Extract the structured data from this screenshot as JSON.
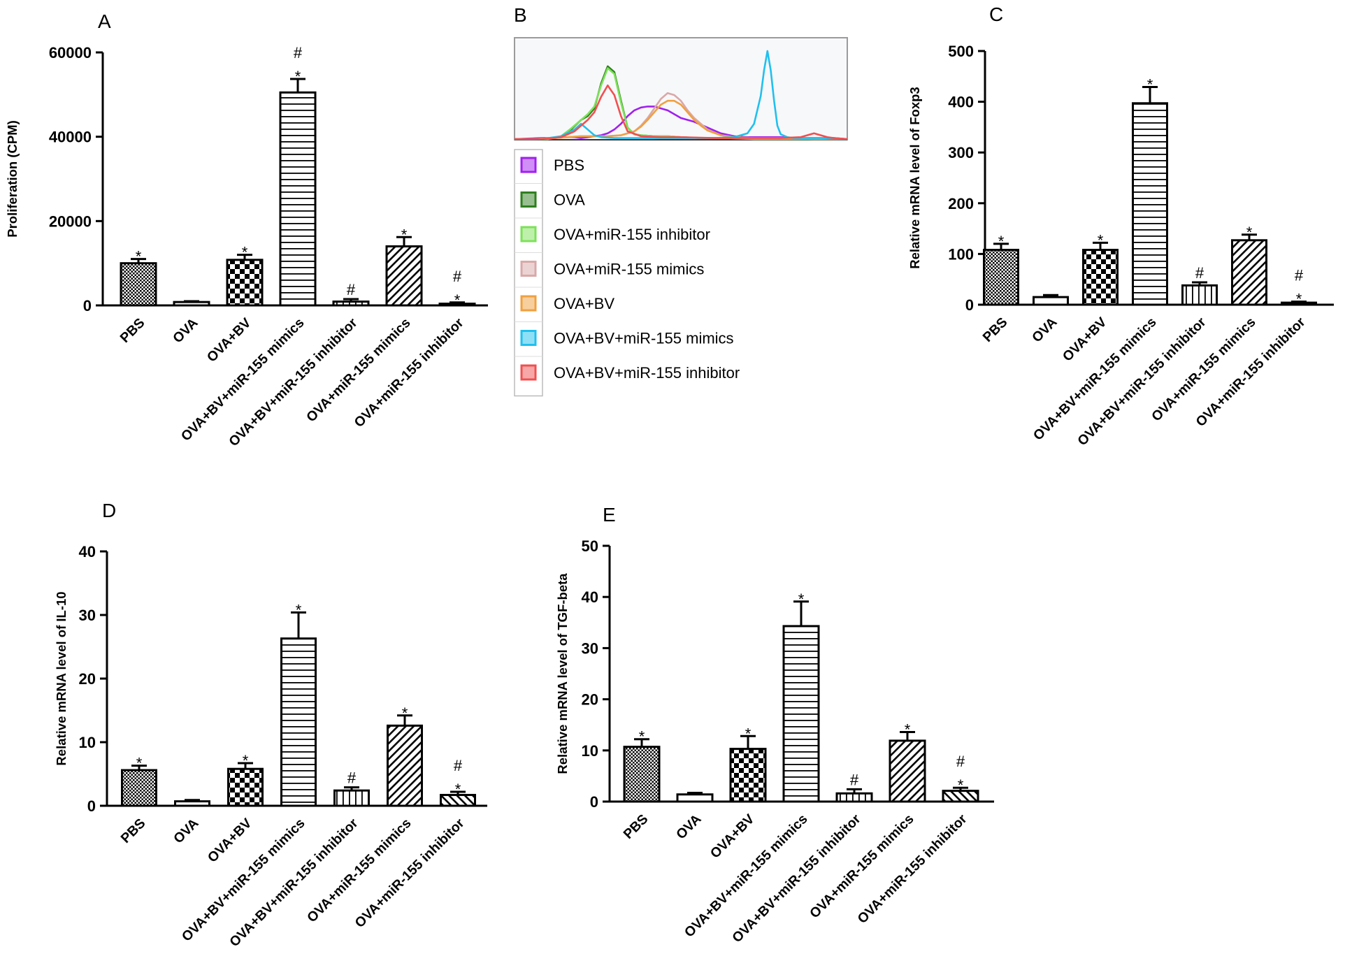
{
  "colors": {
    "ink": "#000000",
    "flow_bg": "#f7f8fa",
    "flow_border": "#9b9b9b",
    "PBS": "#a020f0",
    "OVA": "#2f7f1f",
    "OVA_inhibitor": "#7ee15a",
    "OVA_mimics": "#d9a8a8",
    "OVA_BV": "#f0a040",
    "OVA_BV_mimics": "#20c0ee",
    "OVA_BV_inhibitor": "#f05050"
  },
  "chart_data": [
    {
      "panel": "A",
      "type": "bar",
      "ylabel": "Proliferation (CPM)",
      "ylim": [
        0,
        60000
      ],
      "yticks": [
        0,
        20000,
        40000,
        60000
      ],
      "categories": [
        "PBS",
        "OVA",
        "OVA+BV",
        "OVA+BV+miR-155 mimics",
        "OVA+BV+miR-155 inhibitor",
        "OVA+miR-155 mimics",
        "OVA+miR-155 inhibitor"
      ],
      "patterns": [
        "checkfine",
        "plain",
        "checkbig",
        "hlines",
        "vlines",
        "diag",
        "diag"
      ],
      "values": [
        10000,
        800,
        10800,
        50500,
        900,
        14000,
        400
      ],
      "errors": [
        1000,
        200,
        1200,
        3200,
        600,
        2200,
        300
      ],
      "annotations": [
        "*",
        "",
        "*",
        "#\n*",
        "#",
        "*",
        "#\n*"
      ]
    },
    {
      "panel": "C",
      "type": "bar",
      "ylabel": "Relative mRNA level of Foxp3",
      "ylim": [
        0,
        500
      ],
      "yticks": [
        0,
        100,
        200,
        300,
        400,
        500
      ],
      "categories": [
        "PBS",
        "OVA",
        "OVA+BV",
        "OVA+BV+miR-155 mimics",
        "OVA+BV+miR-155 inhibitor",
        "OVA+miR-155 mimics",
        "OVA+miR-155 inhibitor"
      ],
      "patterns": [
        "checkfine",
        "plain",
        "checkbig",
        "hlines",
        "vlines",
        "diag",
        "diag"
      ],
      "values": [
        108,
        15,
        108,
        397,
        38,
        127,
        4
      ],
      "errors": [
        12,
        4,
        14,
        32,
        6,
        11,
        2
      ],
      "annotations": [
        "*",
        "",
        "*",
        "*",
        "#",
        "*",
        "#\n*"
      ]
    },
    {
      "panel": "D",
      "type": "bar",
      "ylabel": "Relative mRNA level of IL-10",
      "ylim": [
        0,
        40
      ],
      "yticks": [
        0,
        10,
        20,
        30,
        40
      ],
      "categories": [
        "PBS",
        "OVA",
        "OVA+BV",
        "OVA+BV+miR-155 mimics",
        "OVA+BV+miR-155 inhibitor",
        "OVA+miR-155 mimics",
        "OVA+miR-155 inhibitor"
      ],
      "patterns": [
        "checkfine",
        "plain",
        "checkbig",
        "hlines",
        "vlines",
        "diag",
        "diagback"
      ],
      "values": [
        5.6,
        0.7,
        5.8,
        26.3,
        2.4,
        12.6,
        1.7
      ],
      "errors": [
        0.7,
        0.2,
        0.9,
        4.1,
        0.5,
        1.6,
        0.5
      ],
      "annotations": [
        "*",
        "",
        "*",
        "*",
        "#",
        "*",
        "#\n*"
      ]
    },
    {
      "panel": "E",
      "type": "bar",
      "ylabel": "Relative mRNA level of TGF-beta",
      "ylim": [
        0,
        50
      ],
      "yticks": [
        0,
        10,
        20,
        30,
        40,
        50
      ],
      "categories": [
        "PBS",
        "OVA",
        "OVA+BV",
        "OVA+BV+miR-155 mimics",
        "OVA+BV+miR-155 inhibitor",
        "OVA+miR-155 mimics",
        "OVA+miR-155 inhibitor"
      ],
      "patterns": [
        "checkfine",
        "plain",
        "checkbig",
        "hlines",
        "vlines",
        "diag",
        "diagback"
      ],
      "values": [
        10.7,
        1.4,
        10.3,
        34.3,
        1.6,
        11.9,
        2.1
      ],
      "errors": [
        1.5,
        0.3,
        2.5,
        4.8,
        0.8,
        1.7,
        0.6
      ],
      "annotations": [
        "*",
        "",
        "*",
        "*",
        "#",
        "*",
        "#\n*"
      ]
    },
    {
      "panel": "B",
      "type": "line",
      "title": "",
      "legend": [
        {
          "label": "PBS",
          "color_key": "PBS"
        },
        {
          "label": "OVA",
          "color_key": "OVA"
        },
        {
          "label": "OVA+miR-155 inhibitor",
          "color_key": "OVA_inhibitor"
        },
        {
          "label": "OVA+miR-155 mimics",
          "color_key": "OVA_mimics"
        },
        {
          "label": "OVA+BV",
          "color_key": "OVA_BV"
        },
        {
          "label": "OVA+BV+miR-155 mimics",
          "color_key": "OVA_BV_mimics"
        },
        {
          "label": "OVA+BV+miR-155 inhibitor",
          "color_key": "OVA_BV_inhibitor"
        }
      ],
      "series": [
        {
          "name": "PBS",
          "color_key": "PBS",
          "x": [
            0,
            4,
            8,
            12,
            14,
            16,
            18,
            20,
            22,
            24,
            26,
            28,
            30,
            32,
            34,
            36,
            38,
            40,
            42,
            46,
            50,
            54,
            58,
            62,
            66,
            70,
            74,
            80,
            86,
            92,
            96,
            100
          ],
          "y": [
            0,
            0.5,
            1,
            1,
            2,
            2,
            2,
            1,
            2,
            3,
            4,
            6,
            10,
            16,
            24,
            30,
            33,
            34,
            34,
            30,
            22,
            18,
            12,
            6,
            3,
            2,
            2,
            2,
            1,
            1,
            1,
            0
          ]
        },
        {
          "name": "OVA",
          "color_key": "OVA",
          "x": [
            0,
            6,
            10,
            14,
            17,
            20,
            22,
            24,
            26,
            28,
            30,
            32,
            34,
            36,
            38,
            42,
            46,
            50,
            56,
            64,
            72,
            80,
            90,
            100
          ],
          "y": [
            0,
            0,
            0,
            2,
            10,
            20,
            24,
            32,
            58,
            76,
            70,
            40,
            12,
            5,
            4,
            3,
            3,
            2,
            1,
            1,
            0,
            0,
            0,
            0
          ]
        },
        {
          "name": "OVA+miR-155 inhibitor",
          "color_key": "OVA_inhibitor",
          "x": [
            0,
            6,
            10,
            14,
            17,
            20,
            22,
            24,
            26,
            28,
            30,
            32,
            34,
            36,
            38,
            42,
            46,
            50,
            56,
            64,
            72,
            80,
            90,
            100
          ],
          "y": [
            0,
            0,
            0,
            3,
            11,
            20,
            26,
            34,
            56,
            74,
            68,
            38,
            12,
            5,
            4,
            3,
            3,
            2,
            1,
            1,
            0,
            0,
            0,
            0
          ]
        },
        {
          "name": "OVA+miR-155 mimics",
          "color_key": "OVA_mimics",
          "x": [
            0,
            6,
            12,
            16,
            20,
            24,
            28,
            32,
            36,
            38,
            40,
            42,
            44,
            46,
            48,
            50,
            52,
            54,
            56,
            58,
            62,
            66,
            72,
            80,
            90,
            100
          ],
          "y": [
            0,
            0,
            1,
            2,
            3,
            3,
            3,
            4,
            8,
            14,
            22,
            32,
            42,
            48,
            46,
            40,
            30,
            22,
            16,
            10,
            4,
            2,
            1,
            1,
            0,
            0
          ]
        },
        {
          "name": "OVA+BV",
          "color_key": "OVA_BV",
          "x": [
            0,
            6,
            12,
            16,
            20,
            24,
            28,
            32,
            36,
            38,
            40,
            42,
            44,
            46,
            48,
            50,
            52,
            54,
            56,
            58,
            62,
            66,
            72,
            80,
            90,
            100
          ],
          "y": [
            0,
            0,
            1,
            2,
            3,
            3,
            3,
            4,
            8,
            13,
            20,
            28,
            36,
            40,
            40,
            36,
            28,
            20,
            14,
            9,
            4,
            2,
            1,
            1,
            0,
            0
          ]
        },
        {
          "name": "OVA+BV+miR-155 mimics",
          "color_key": "OVA_BV_mimics",
          "x": [
            0,
            8,
            14,
            18,
            20,
            22,
            24,
            26,
            30,
            40,
            50,
            60,
            66,
            70,
            72,
            74,
            75,
            76,
            77,
            78,
            79,
            80,
            82,
            84,
            88,
            92,
            96,
            100
          ],
          "y": [
            0,
            0,
            3,
            10,
            16,
            10,
            4,
            2,
            1,
            1,
            1,
            1,
            2,
            6,
            16,
            45,
            72,
            92,
            72,
            40,
            14,
            5,
            2,
            1,
            1,
            1,
            0,
            0
          ]
        },
        {
          "name": "OVA+BV+miR-155 inhibitor",
          "color_key": "OVA_BV_inhibitor",
          "x": [
            0,
            8,
            14,
            18,
            20,
            22,
            24,
            26,
            28,
            30,
            32,
            34,
            38,
            44,
            50,
            60,
            70,
            80,
            86,
            88,
            90,
            92,
            94,
            96,
            100
          ],
          "y": [
            0,
            0,
            2,
            8,
            14,
            20,
            28,
            44,
            56,
            46,
            24,
            8,
            3,
            2,
            2,
            1,
            1,
            1,
            2,
            4,
            6,
            4,
            2,
            1,
            0
          ]
        }
      ]
    }
  ]
}
